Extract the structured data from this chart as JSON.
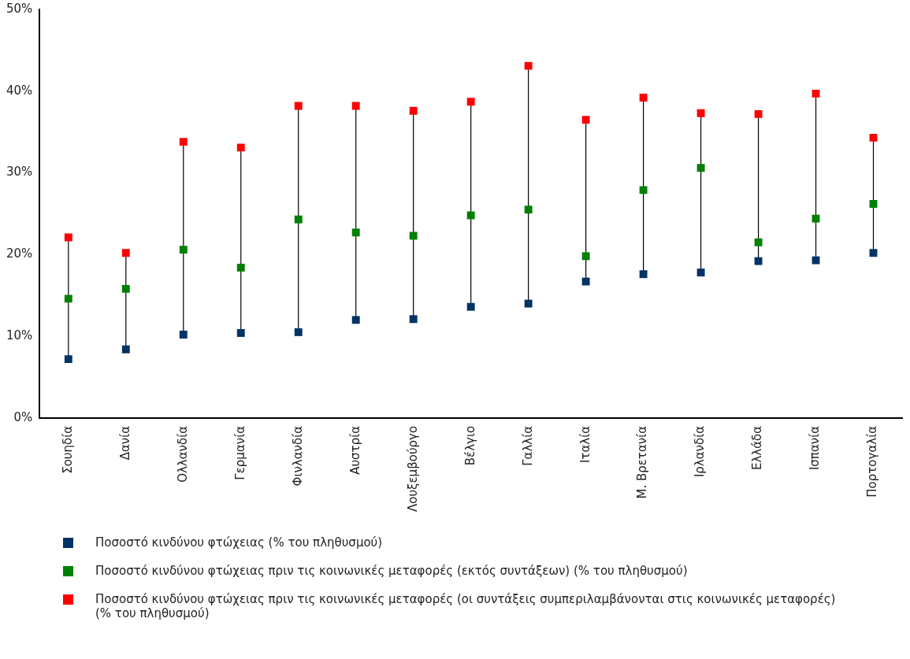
{
  "chart_data": {
    "type": "scatter",
    "categories": [
      "Σουηδία",
      "Δανία",
      "Ολλανδία",
      "Γερμανία",
      "Φινλανδία",
      "Αυστρία",
      "Λουξεμβούργο",
      "Βέλγιο",
      "Γαλλία",
      "Ιταλία",
      "Μ. Βρετανία",
      "Ιρλανδία",
      "Ελλάδα",
      "Ισπανία",
      "Πορτογαλία"
    ],
    "series": [
      {
        "name": "Ποσοστό κινδύνου φτώχειας (% του πληθυσμού)",
        "color": "#003366",
        "values": [
          7.2,
          8.4,
          10.2,
          10.4,
          10.5,
          12.0,
          12.1,
          13.6,
          14.0,
          16.7,
          17.6,
          17.8,
          19.2,
          19.3,
          20.2
        ]
      },
      {
        "name": "Ποσοστό κινδύνου φτώχειας πριν τις κοινωνικές μεταφορές (εκτός συντάξεων) (% του πληθυσμού)",
        "color": "#008000",
        "values": [
          14.6,
          15.8,
          20.6,
          18.4,
          24.3,
          22.7,
          22.3,
          24.8,
          25.5,
          19.8,
          27.9,
          30.6,
          21.5,
          24.4,
          26.2
        ]
      },
      {
        "name": "Ποσοστό κινδύνου φτώχειας πριν τις κοινωνικές μεταφορές (οι συντάξεις συμπεριλαμβάνονται στις κοινωνικές μεταφορές) (% του πληθυσμού)",
        "color": "#ff0000",
        "values": [
          22.1,
          20.2,
          33.8,
          33.1,
          38.2,
          38.2,
          37.6,
          38.7,
          43.1,
          36.5,
          39.2,
          37.3,
          37.2,
          39.7,
          34.3
        ]
      }
    ],
    "ylim": [
      0,
      50
    ],
    "yticks": [
      {
        "value": 0,
        "label": "0%"
      },
      {
        "value": 10,
        "label": "10%"
      },
      {
        "value": 20,
        "label": "20%"
      },
      {
        "value": 30,
        "label": "30%"
      },
      {
        "value": 40,
        "label": "40%"
      },
      {
        "value": 50,
        "label": "50%"
      }
    ],
    "marker": "square",
    "grid": false,
    "legend": "bottom"
  }
}
